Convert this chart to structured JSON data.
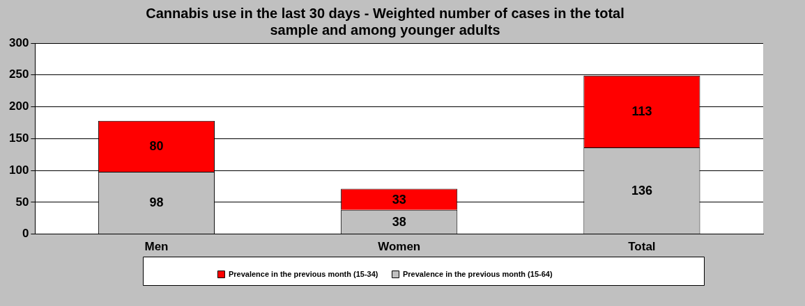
{
  "chart_data": {
    "type": "bar",
    "title": "Cannabis use in the last 30 days - Weighted number of cases in the total sample and among younger adults",
    "categories": [
      "Men",
      "Women",
      "Total"
    ],
    "series": [
      {
        "name": "Prevalence in the previous month (15-64)",
        "color": "#c0c0c0",
        "values": [
          98,
          38,
          136
        ]
      },
      {
        "name": "Prevalence in the previous month (15-34)",
        "color": "#ff0000",
        "values": [
          80,
          33,
          113
        ]
      }
    ],
    "stacked": true,
    "ylim": [
      0,
      300
    ],
    "yticks": [
      0,
      50,
      100,
      150,
      200,
      250,
      300
    ],
    "grid": "y",
    "legend": "bottom",
    "data_labels": true
  }
}
